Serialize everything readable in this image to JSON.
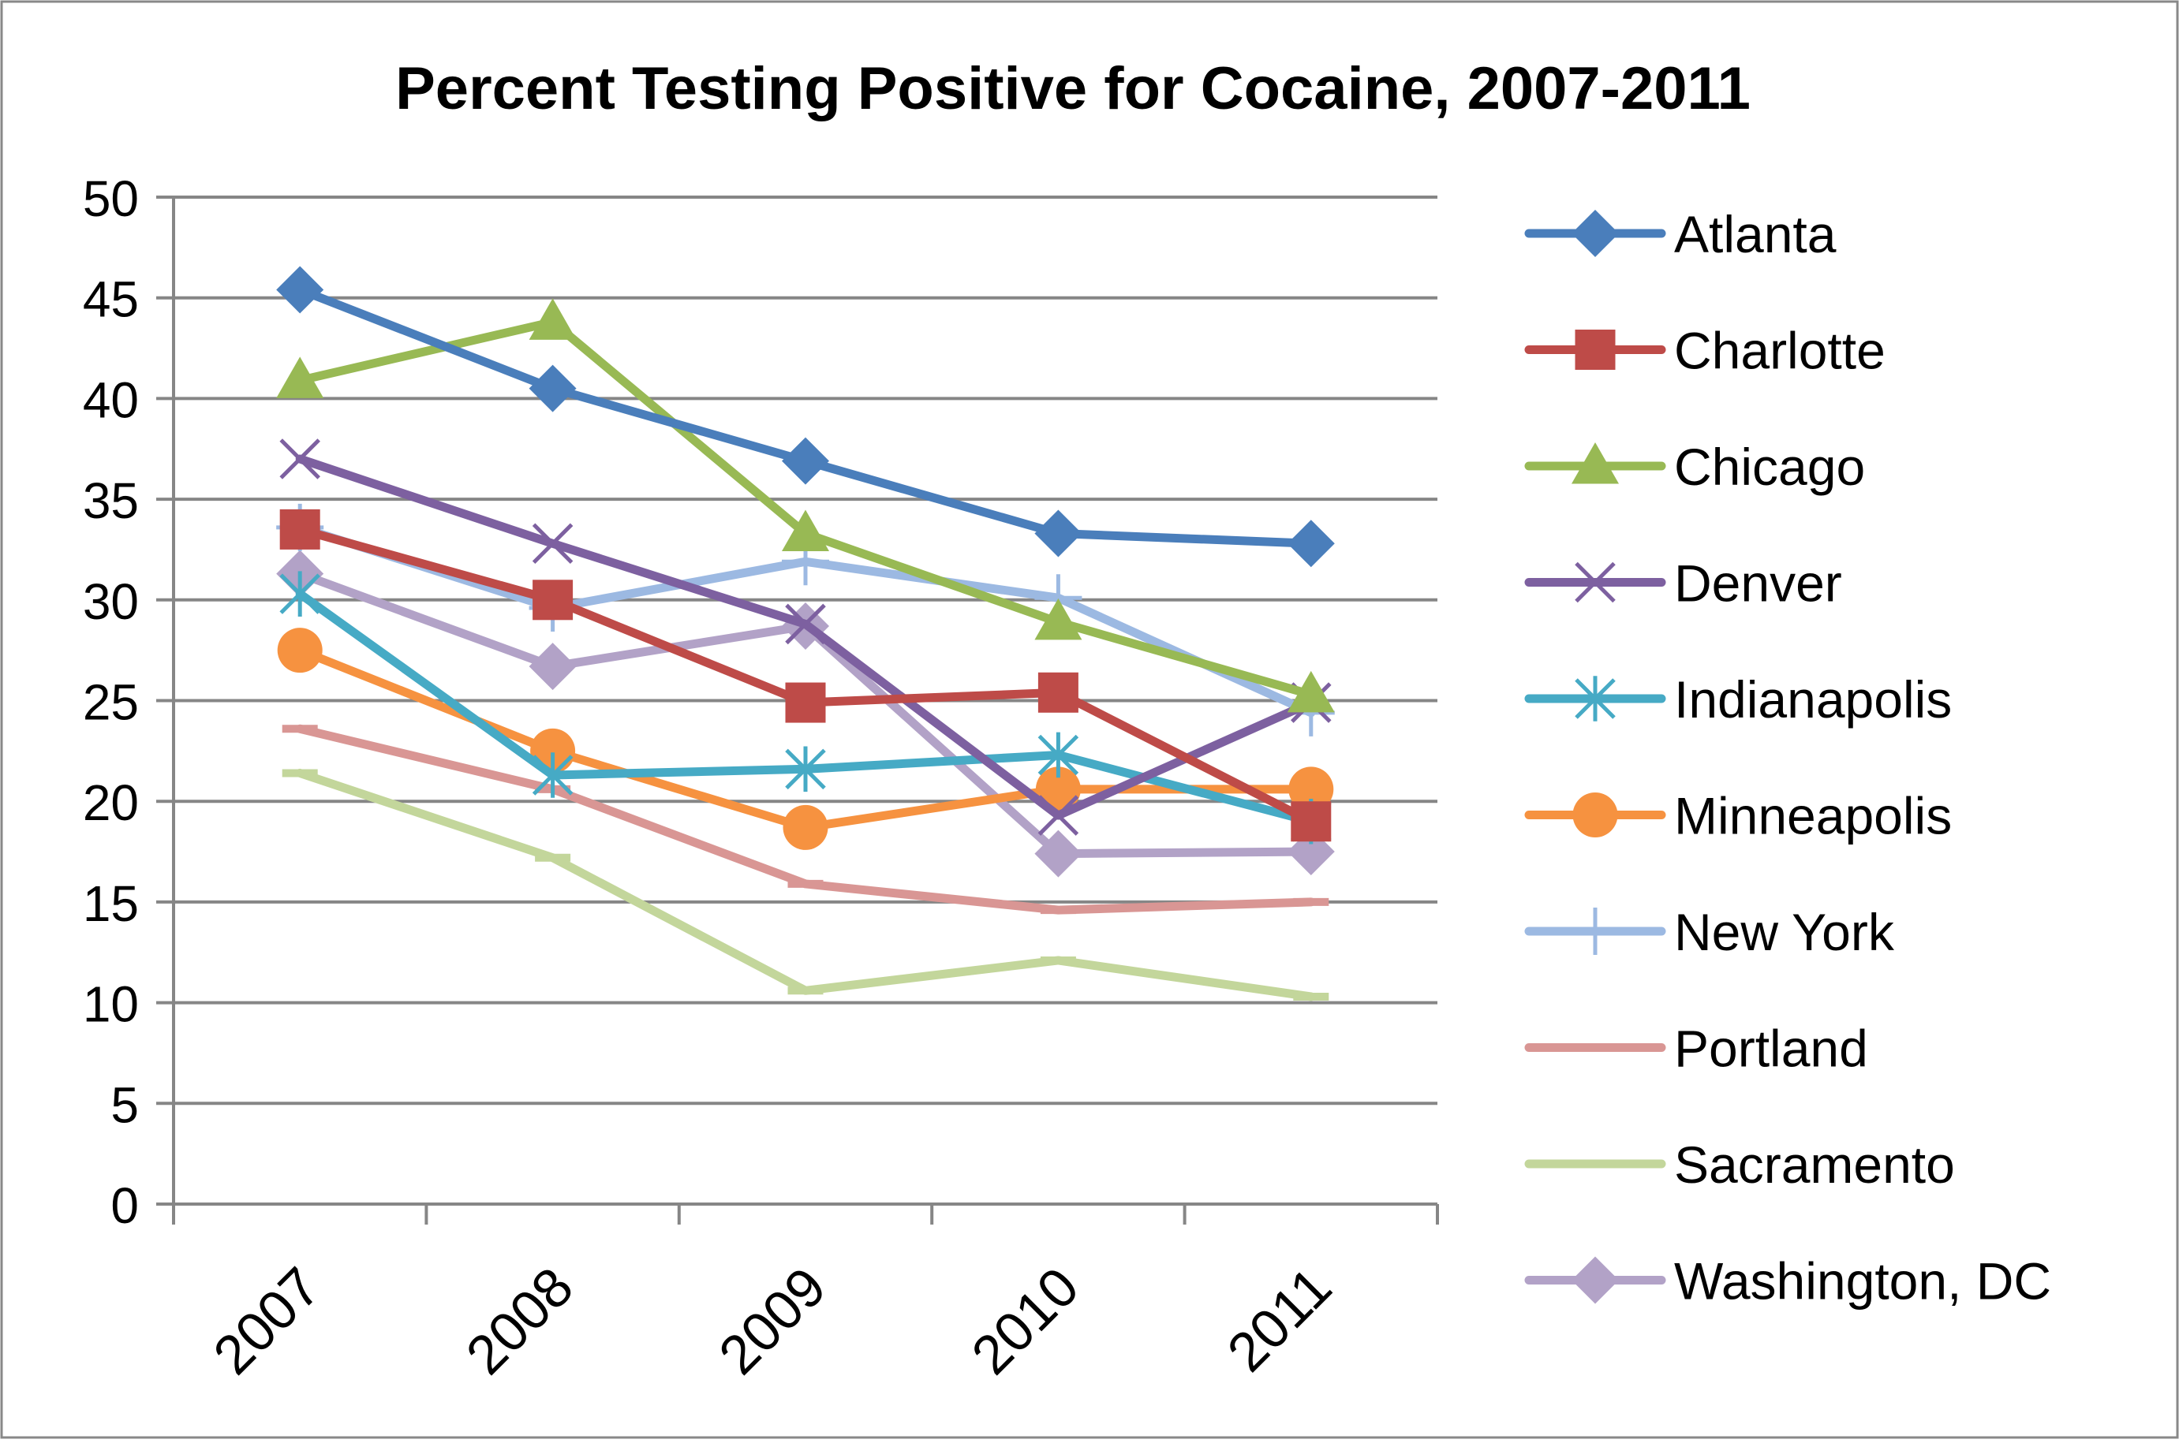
{
  "chart_data": {
    "type": "line",
    "title": "Percent Testing Positive for Cocaine, 2007-2011",
    "xlabel": "",
    "ylabel": "",
    "categories": [
      "2007",
      "2008",
      "2009",
      "2010",
      "2011"
    ],
    "ylim": [
      0,
      50
    ],
    "yticks": [
      0,
      5,
      10,
      15,
      20,
      25,
      30,
      35,
      40,
      45,
      50
    ],
    "grid": true,
    "legend_position": "right",
    "series": [
      {
        "name": "Atlanta",
        "values": [
          45.4,
          40.5,
          36.9,
          33.3,
          32.8
        ],
        "color": "#4a7ebb",
        "marker": "diamond"
      },
      {
        "name": "Charlotte",
        "values": [
          33.5,
          30.0,
          24.9,
          25.4,
          19.0
        ],
        "color": "#be4b48",
        "marker": "square"
      },
      {
        "name": "Chicago",
        "values": [
          40.9,
          43.8,
          33.3,
          28.9,
          25.3
        ],
        "color": "#98b954",
        "marker": "triangle"
      },
      {
        "name": "Denver",
        "values": [
          37.0,
          32.8,
          28.8,
          19.3,
          24.9
        ],
        "color": "#7d60a0",
        "marker": "x"
      },
      {
        "name": "Indianapolis",
        "values": [
          30.3,
          21.3,
          21.6,
          22.3,
          19.0
        ],
        "color": "#46aac5",
        "marker": "asterisk"
      },
      {
        "name": "Minneapolis",
        "values": [
          27.5,
          22.5,
          18.7,
          20.6,
          20.6
        ],
        "color": "#f69240",
        "marker": "circle"
      },
      {
        "name": "New York",
        "values": [
          33.6,
          29.6,
          31.9,
          30.1,
          24.4
        ],
        "color": "#9cb9e2",
        "marker": "plus"
      },
      {
        "name": "Portland",
        "values": [
          23.6,
          20.6,
          15.9,
          14.6,
          15.0
        ],
        "color": "#d99694",
        "marker": "dash"
      },
      {
        "name": "Sacramento",
        "values": [
          21.4,
          17.2,
          10.6,
          12.1,
          10.3
        ],
        "color": "#c3d69b",
        "marker": "dash"
      },
      {
        "name": "Washington, DC",
        "values": [
          31.3,
          26.7,
          28.7,
          17.4,
          17.5
        ],
        "color": "#b2a2c7",
        "marker": "diamond"
      }
    ]
  }
}
